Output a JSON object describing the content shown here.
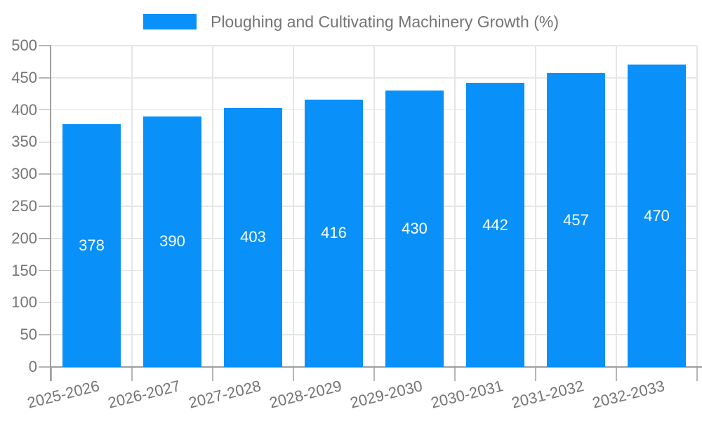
{
  "chart_data": {
    "type": "bar",
    "title": "Ploughing and Cultivating Machinery Growth (%)",
    "legend": [
      "Ploughing and Cultivating Machinery Growth (%)"
    ],
    "legend_position": "top-center",
    "categories": [
      "2025-2026",
      "2026-2027",
      "2027-2028",
      "2028-2029",
      "2029-2030",
      "2030-2031",
      "2031-2032",
      "2032-2033"
    ],
    "series": [
      {
        "name": "Ploughing and Cultivating Machinery Growth (%)",
        "values": [
          378,
          390,
          403,
          416,
          430,
          442,
          457,
          470
        ]
      }
    ],
    "value_labels_shown": true,
    "value_label_position": "inside-middle",
    "xlabel": "",
    "ylabel": "",
    "ylim": [
      0,
      500
    ],
    "ytick_step": 50,
    "ytick_labels": [
      "0",
      "50",
      "100",
      "150",
      "200",
      "250",
      "300",
      "350",
      "400",
      "450",
      "500"
    ],
    "grid": true,
    "colors": {
      "bar": "#0990f9",
      "value_label": "#ffffff",
      "axis_text": "#757575",
      "grid_line": "#e6e6e6",
      "axis_line": "#9e9e9e",
      "tick_line": "#b5b5b5",
      "background": "#ffffff"
    }
  }
}
